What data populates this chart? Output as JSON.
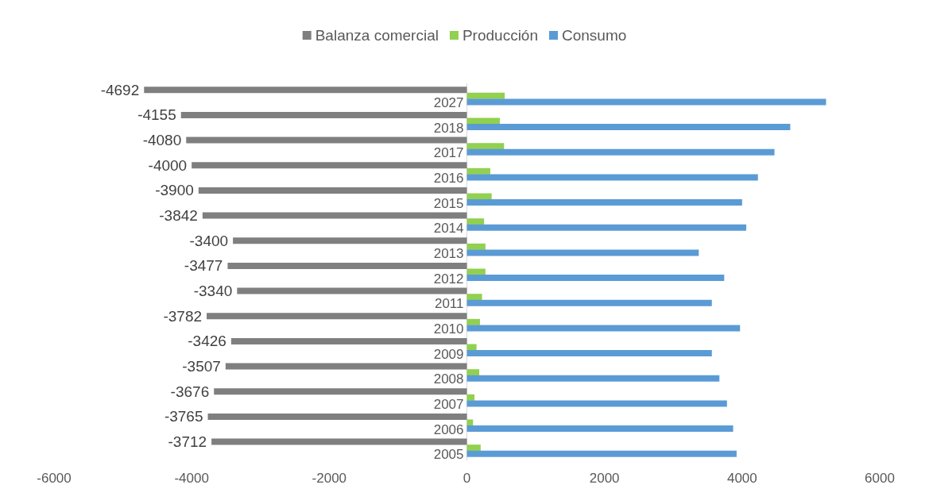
{
  "chart_data": {
    "type": "bar",
    "orientation": "horizontal",
    "categories": [
      "2027",
      "2018",
      "2017",
      "2016",
      "2015",
      "2014",
      "2013",
      "2012",
      "2011",
      "2010",
      "2009",
      "2008",
      "2007",
      "2006",
      "2005"
    ],
    "series": [
      {
        "name": "Balanza comercial",
        "color": "#7f7f7f",
        "values": [
          -4692,
          -4155,
          -4080,
          -4000,
          -3900,
          -3842,
          -3400,
          -3477,
          -3340,
          -3782,
          -3426,
          -3507,
          -3676,
          -3765,
          -3712
        ],
        "value_labels": [
          "-4692",
          "-4155",
          "-4080",
          "-4000",
          "-3900",
          "-3842",
          "-3400",
          "-3477",
          "-3340",
          "-3782",
          "-3426",
          "-3507",
          "-3676",
          "-3765",
          "-3712"
        ]
      },
      {
        "name": "Producción",
        "color": "#92d050",
        "values": [
          550,
          480,
          540,
          340,
          360,
          250,
          270,
          270,
          220,
          190,
          140,
          180,
          110,
          90,
          200
        ]
      },
      {
        "name": "Consumo",
        "color": "#5b9bd5",
        "values": [
          5220,
          4700,
          4470,
          4230,
          4000,
          4060,
          3370,
          3740,
          3560,
          3970,
          3560,
          3670,
          3780,
          3870,
          3920
        ]
      }
    ],
    "xlim": [
      -6000,
      6000
    ],
    "xticks": [
      -6000,
      -4000,
      -2000,
      0,
      2000,
      4000,
      6000
    ],
    "grid": false,
    "legend": "top"
  }
}
